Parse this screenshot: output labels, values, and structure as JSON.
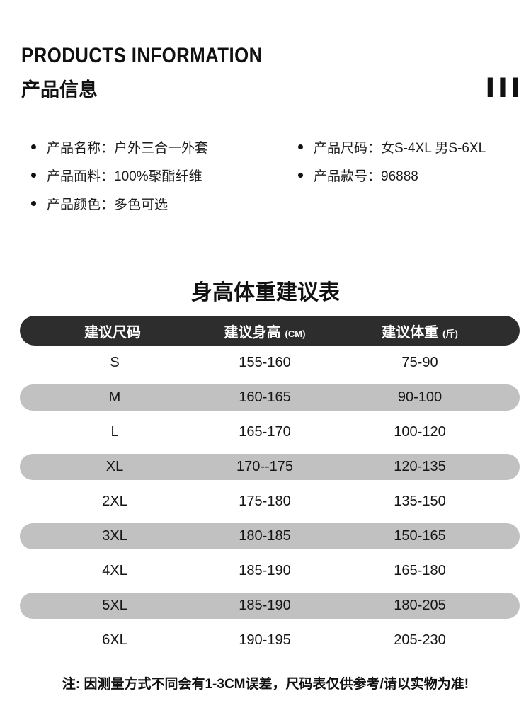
{
  "header": {
    "title_en": "PRODUCTS INFORMATION",
    "title_zh": "产品信息",
    "corner_mark": "III"
  },
  "product_details": {
    "left": [
      {
        "text": "产品名称：户外三合一外套"
      },
      {
        "text": "产品面料：100%聚酯纤维"
      },
      {
        "text": "产品颜色：多色可选"
      }
    ],
    "right": [
      {
        "text": "产品尺码：女S-4XL 男S-6XL"
      },
      {
        "text": "产品款号：96888"
      }
    ]
  },
  "size_chart": {
    "title": "身高体重建议表",
    "columns": [
      {
        "label": "建议尺码",
        "unit": ""
      },
      {
        "label": "建议身高",
        "unit": "(CM)"
      },
      {
        "label": "建议体重",
        "unit": "(斤)"
      }
    ],
    "rows": [
      {
        "size": "S",
        "height": "155-160",
        "weight": "75-90"
      },
      {
        "size": "M",
        "height": "160-165",
        "weight": "90-100"
      },
      {
        "size": "L",
        "height": "165-170",
        "weight": "100-120"
      },
      {
        "size": "XL",
        "height": "170--175",
        "weight": "120-135"
      },
      {
        "size": "2XL",
        "height": "175-180",
        "weight": "135-150"
      },
      {
        "size": "3XL",
        "height": "180-185",
        "weight": "150-165"
      },
      {
        "size": "4XL",
        "height": "185-190",
        "weight": "165-180"
      },
      {
        "size": "5XL",
        "height": "185-190",
        "weight": "180-205"
      },
      {
        "size": "6XL",
        "height": "190-195",
        "weight": "205-230"
      }
    ],
    "note": "注: 因测量方式不同会有1-3CM误差，尺码表仅供参考/请以实物为准!"
  },
  "colors": {
    "table_header_bg": "#2d2d2d",
    "table_header_text": "#ffffff",
    "row_alt_bg": "#c1c1c1",
    "text": "#1a1a1a",
    "background": "#ffffff"
  }
}
